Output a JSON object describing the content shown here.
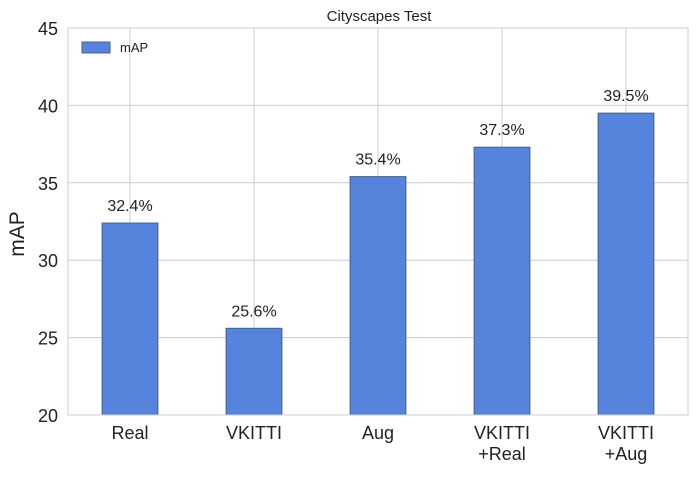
{
  "chart_data": {
    "type": "bar",
    "title": "Cityscapes Test",
    "xlabel": "",
    "ylabel": "mAP",
    "ylim": [
      20,
      45
    ],
    "yticks": [
      "20",
      "25",
      "30",
      "35",
      "40",
      "45"
    ],
    "categories": [
      [
        "Real"
      ],
      [
        "VKITTI"
      ],
      [
        "Aug"
      ],
      [
        "VKITTI",
        "+Real"
      ],
      [
        "VKITTI",
        "+Aug"
      ]
    ],
    "series": [
      {
        "name": "mAP",
        "values": [
          32.4,
          25.6,
          35.4,
          37.3,
          39.5
        ],
        "labels": [
          "32.4%",
          "25.6%",
          "35.4%",
          "37.3%",
          "39.5%"
        ],
        "color": "#5683dc",
        "edge_color": "#4a5f86"
      }
    ],
    "grid": true,
    "grid_color": "#cbcbcb",
    "legend_position": "top-left"
  }
}
